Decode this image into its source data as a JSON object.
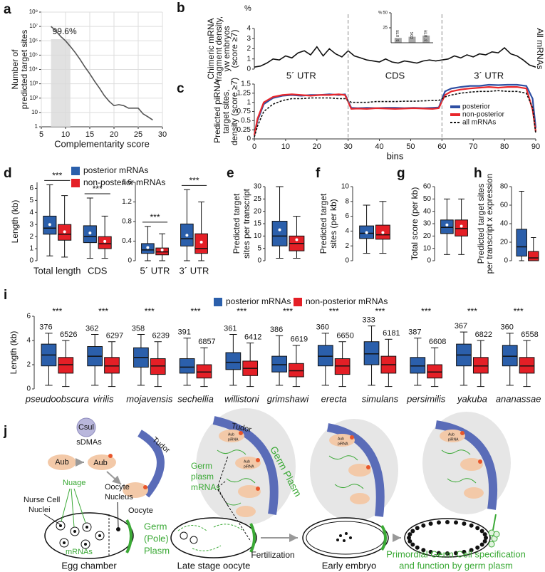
{
  "chart_data": [
    {
      "panel": "a",
      "type": "line",
      "ylabel": [
        "Number of",
        "predicted target sites"
      ],
      "xlabel": "Complementarity score",
      "annotation": "99.6%",
      "highlight_x": [
        7,
        11
      ],
      "x": [
        7,
        8,
        9,
        10,
        11,
        12,
        13,
        14,
        15,
        16,
        17,
        18,
        19,
        20,
        21,
        22,
        23,
        24,
        25,
        26,
        27,
        28
      ],
      "values": [
        10000000,
        5000000,
        2000000,
        1000000,
        400000,
        150000,
        50000,
        15000,
        5000,
        1500,
        500,
        150,
        60,
        30,
        35,
        30,
        20,
        20,
        20,
        8,
        5,
        3
      ],
      "color": "#555555",
      "xlim": [
        5,
        30
      ],
      "xticks": [
        5,
        10,
        15,
        20,
        25,
        30
      ],
      "ylog": true,
      "ylim": [
        1,
        100000000
      ],
      "yticks": [
        1,
        10,
        {
          "value": 100,
          "label": "10²"
        },
        {
          "value": 1000,
          "label": "10³"
        },
        {
          "value": 10000,
          "label": "10⁴"
        },
        {
          "value": 100000,
          "label": "10⁵"
        },
        {
          "value": 1000000,
          "label": "10⁶"
        },
        {
          "value": 10000000,
          "label": "10⁷"
        },
        {
          "value": 100000000,
          "label": "10⁸"
        }
      ],
      "grid": true
    },
    {
      "panel": "b",
      "type": "line",
      "unit": "%",
      "ylabel": [
        "Chimeric mRNA",
        "fragment density,",
        "yw embryos",
        "(score ≥7)"
      ],
      "side_label": "All mRNAs",
      "regions": [
        "5´ UTR",
        "CDS",
        "3´ UTR"
      ],
      "x": [
        0,
        2,
        4,
        6,
        8,
        10,
        12,
        14,
        16,
        18,
        20,
        22,
        24,
        26,
        28,
        30,
        32,
        34,
        36,
        38,
        40,
        42,
        44,
        46,
        48,
        50,
        52,
        54,
        56,
        58,
        60,
        62,
        64,
        66,
        68,
        70,
        72,
        74,
        76,
        78,
        80,
        82,
        84,
        86,
        88,
        90
      ],
      "values": [
        0.2,
        0.3,
        0.6,
        1.0,
        0.9,
        1.3,
        1.1,
        1.6,
        1.8,
        1.4,
        2.2,
        1.3,
        2.0,
        1.5,
        1.2,
        1.8,
        1.3,
        1.1,
        0.9,
        0.8,
        0.7,
        1.0,
        0.7,
        0.6,
        0.8,
        0.7,
        0.6,
        0.8,
        0.9,
        0.8,
        0.9,
        1.0,
        1.3,
        1.1,
        1.4,
        1.2,
        1.5,
        1.4,
        1.7,
        1.6,
        2.1,
        1.5,
        1.3,
        0.9,
        0.4,
        0.2
      ],
      "color": "#111111",
      "xlim": [
        0,
        90
      ],
      "ylim": [
        0,
        4
      ],
      "yticks": [
        0,
        1,
        2,
        3,
        4
      ]
    },
    {
      "type": "bar",
      "unit": "%",
      "categories": [
        "5´ UTR",
        "CDS",
        "3´ UTR"
      ],
      "values": [
        8,
        10,
        12
      ],
      "color": "#a6a6a6",
      "ylim": [
        0,
        50
      ],
      "yticks": [
        25,
        50
      ]
    },
    {
      "panel": "c",
      "type": "line",
      "ylabel": [
        "Predicted piRNA",
        "target sites,",
        "density (score ≥7)"
      ],
      "xlabel": "bins",
      "x": [
        0,
        1,
        3,
        6,
        9,
        12,
        15,
        18,
        21,
        24,
        27,
        29,
        31,
        33,
        36,
        39,
        42,
        45,
        48,
        51,
        54,
        57,
        59,
        61,
        63,
        66,
        69,
        72,
        75,
        78,
        81,
        84,
        87,
        89,
        90
      ],
      "series": [
        {
          "name": "posterior",
          "color": "#2e4fa3",
          "values": [
            0.1,
            0.5,
            0.95,
            1.12,
            1.18,
            1.2,
            1.18,
            1.2,
            1.2,
            1.22,
            1.2,
            1.22,
            0.85,
            0.84,
            0.85,
            0.84,
            0.85,
            0.85,
            0.84,
            0.85,
            0.84,
            0.85,
            0.86,
            1.3,
            1.38,
            1.42,
            1.45,
            1.45,
            1.48,
            1.47,
            1.48,
            1.48,
            1.45,
            1.1,
            0.3
          ]
        },
        {
          "name": "non-posterior",
          "color": "#e8262b",
          "values": [
            0.1,
            0.55,
            1.0,
            1.15,
            1.2,
            1.22,
            1.2,
            1.18,
            1.2,
            1.2,
            1.22,
            1.2,
            0.82,
            0.83,
            0.82,
            0.84,
            0.83,
            0.82,
            0.83,
            0.84,
            0.83,
            0.82,
            0.84,
            1.2,
            1.3,
            1.35,
            1.38,
            1.4,
            1.42,
            1.4,
            1.42,
            1.42,
            1.38,
            0.8,
            0.2
          ]
        },
        {
          "name": "all mRNAs",
          "color": "#111111",
          "dash": true,
          "values": [
            0.05,
            0.35,
            0.75,
            0.95,
            1.05,
            1.1,
            1.1,
            1.12,
            1.12,
            1.12,
            1.1,
            1.1,
            1.0,
            1.0,
            1.0,
            1.02,
            1.02,
            1.02,
            1.03,
            1.03,
            1.04,
            1.05,
            1.05,
            1.15,
            1.2,
            1.25,
            1.28,
            1.3,
            1.3,
            1.32,
            1.3,
            1.3,
            1.25,
            0.85,
            0.15
          ]
        }
      ],
      "xlim": [
        0,
        90
      ],
      "xticks": [
        0,
        10,
        20,
        30,
        40,
        50,
        60,
        70,
        80,
        90
      ],
      "ylim": [
        0,
        1.5
      ],
      "yticks": [
        0,
        0.25,
        0.5,
        0.75,
        1,
        1.25,
        1.5
      ],
      "dividers": [
        30,
        60
      ],
      "legend": "right"
    },
    {
      "panel": "d",
      "type": "box",
      "ylabel": [
        "Length (kb)"
      ],
      "categories": [
        "Total length",
        "CDS"
      ],
      "significance": [
        "***",
        "***"
      ],
      "legend": "top",
      "series": [
        {
          "name": "posterior mRNAs",
          "color": "#2b5fab",
          "boxes": [
            {
              "whislo": 0.4,
              "q1": 2.2,
              "med": 2.7,
              "q3": 3.7,
              "whishi": 6.3,
              "mean": 3.0
            },
            {
              "whislo": 0.2,
              "q1": 1.5,
              "med": 2.0,
              "q3": 2.9,
              "whishi": 5.2,
              "mean": 2.3
            }
          ]
        },
        {
          "name": "non-posterior mRNAs",
          "color": "#e41f26",
          "boxes": [
            {
              "whislo": 0.3,
              "q1": 1.7,
              "med": 2.2,
              "q3": 3.0,
              "whishi": 5.4,
              "mean": 2.4
            },
            {
              "whislo": 0.2,
              "q1": 1.0,
              "med": 1.4,
              "q3": 2.0,
              "whishi": 3.7,
              "mean": 1.6
            }
          ]
        }
      ],
      "ylim": [
        0,
        6.5
      ],
      "yticks": [
        0,
        1,
        2,
        3,
        4,
        5,
        6
      ]
    },
    {
      "type": "box",
      "categories": [
        "5´ UTR",
        "3´ UTR"
      ],
      "significance": [
        "***",
        "***"
      ],
      "series": [
        {
          "color": "#2b5fab",
          "boxes": [
            {
              "whislo": 0,
              "q1": 0.15,
              "med": 0.22,
              "q3": 0.35,
              "whishi": 0.7,
              "mean": 0.27
            },
            {
              "whislo": 0,
              "q1": 0.3,
              "med": 0.45,
              "q3": 0.75,
              "whishi": 1.45,
              "mean": 0.52
            }
          ]
        },
        {
          "color": "#e41f26",
          "boxes": [
            {
              "whislo": 0,
              "q1": 0.12,
              "med": 0.18,
              "q3": 0.26,
              "whishi": 0.55,
              "mean": 0.22
            },
            {
              "whislo": 0,
              "q1": 0.15,
              "med": 0.25,
              "q3": 0.55,
              "whishi": 1.2,
              "mean": 0.38
            }
          ]
        }
      ],
      "ylim": [
        0,
        1.6
      ],
      "yticks": [
        0,
        0.4,
        0.8,
        1.2,
        1.6
      ]
    },
    {
      "panel": "e",
      "type": "box",
      "ylabel": [
        "Predicted target",
        "sites per transcript"
      ],
      "categories": [
        null
      ],
      "series": [
        {
          "color": "#2b5fab",
          "boxes": [
            {
              "whislo": 1,
              "q1": 6,
              "med": 10,
              "q3": 16,
              "whishi": 30,
              "mean": 12.5
            }
          ]
        },
        {
          "color": "#e41f26",
          "boxes": [
            {
              "whislo": 1,
              "q1": 4,
              "med": 7,
              "q3": 10,
              "whishi": 18,
              "mean": 8.5
            }
          ]
        }
      ],
      "ylim": [
        0,
        30
      ],
      "yticks": [
        0,
        5,
        10,
        15,
        20,
        25,
        30
      ]
    },
    {
      "panel": "f",
      "type": "box",
      "ylabel": [
        "Predicted target",
        "sites (per kb)"
      ],
      "categories": [
        null
      ],
      "series": [
        {
          "color": "#2b5fab",
          "boxes": [
            {
              "whislo": 1,
              "q1": 3,
              "med": 3.7,
              "q3": 4.7,
              "whishi": 7.5,
              "mean": 3.8
            }
          ]
        },
        {
          "color": "#e41f26",
          "boxes": [
            {
              "whislo": 1,
              "q1": 2.9,
              "med": 3.5,
              "q3": 4.8,
              "whishi": 8,
              "mean": 3.8
            }
          ]
        }
      ],
      "ylim": [
        0,
        10
      ],
      "yticks": [
        0,
        2,
        4,
        6,
        8,
        10
      ]
    },
    {
      "panel": "g",
      "type": "box",
      "ylabel": [
        "Total score (per kb)"
      ],
      "categories": [
        null
      ],
      "series": [
        {
          "color": "#2b5fab",
          "boxes": [
            {
              "whislo": 5,
              "q1": 22,
              "med": 27,
              "q3": 33,
              "whishi": 50,
              "mean": 29
            }
          ]
        },
        {
          "color": "#e41f26",
          "boxes": [
            {
              "whislo": 5,
              "q1": 20,
              "med": 26,
              "q3": 33,
              "whishi": 50,
              "mean": 28
            }
          ]
        }
      ],
      "ylim": [
        0,
        60
      ],
      "yticks": [
        0,
        10,
        20,
        30,
        40,
        50,
        60
      ]
    },
    {
      "panel": "h",
      "type": "box",
      "ylabel": [
        "Predicted target sites",
        "per transcript x expression"
      ],
      "categories": [
        null
      ],
      "series": [
        {
          "color": "#2b5fab",
          "boxes": [
            {
              "whislo": 0,
              "q1": 5,
              "med": 15,
              "q3": 34,
              "whishi": 75
            }
          ]
        },
        {
          "color": "#e41f26",
          "boxes": [
            {
              "whislo": 0,
              "q1": 0,
              "med": 3,
              "q3": 10,
              "whishi": 25
            }
          ]
        }
      ],
      "ylim": [
        0,
        80
      ],
      "yticks": [
        0,
        20,
        40,
        60,
        80
      ]
    },
    {
      "panel": "i",
      "type": "box",
      "ylabel": [
        "Length (kb)"
      ],
      "italic": true,
      "legend": "top",
      "categories": [
        "pseudoobscura",
        "virilis",
        "mojavensis",
        "sechellia",
        "willistoni",
        "grimshawi",
        "erecta",
        "simulans",
        "persimilis",
        "yakuba",
        "ananassae"
      ],
      "significance": [
        "***",
        "***",
        "***",
        "***",
        "***",
        "***",
        "***",
        "***",
        "***",
        "***",
        "***"
      ],
      "series": [
        {
          "name": "posterior mRNAs",
          "color": "#2b5fab",
          "n": [
            376,
            362,
            358,
            391,
            361,
            386,
            360,
            333,
            387,
            367,
            360
          ],
          "boxes": [
            {
              "whislo": 0.3,
              "q1": 1.9,
              "med": 2.8,
              "q3": 3.7,
              "whishi": 4.6
            },
            {
              "whislo": 0.3,
              "q1": 1.9,
              "med": 2.7,
              "q3": 3.5,
              "whishi": 4.5
            },
            {
              "whislo": 0.3,
              "q1": 1.8,
              "med": 2.6,
              "q3": 3.4,
              "whishi": 4.5
            },
            {
              "whislo": 0.3,
              "q1": 1.3,
              "med": 1.8,
              "q3": 2.5,
              "whishi": 4.2
            },
            {
              "whislo": 0.3,
              "q1": 1.6,
              "med": 2.2,
              "q3": 3.0,
              "whishi": 4.5
            },
            {
              "whislo": 0.3,
              "q1": 1.4,
              "med": 2.0,
              "q3": 2.7,
              "whishi": 4.4
            },
            {
              "whislo": 0.3,
              "q1": 1.9,
              "med": 2.7,
              "q3": 3.6,
              "whishi": 4.6
            },
            {
              "whislo": 0.3,
              "q1": 2.0,
              "med": 2.9,
              "q3": 3.9,
              "whishi": 5.2
            },
            {
              "whislo": 0.3,
              "q1": 1.3,
              "med": 1.9,
              "q3": 2.6,
              "whishi": 4.2
            },
            {
              "whislo": 0.3,
              "q1": 1.9,
              "med": 2.8,
              "q3": 3.7,
              "whishi": 4.7
            },
            {
              "whislo": 0.3,
              "q1": 1.9,
              "med": 2.7,
              "q3": 3.6,
              "whishi": 4.6
            }
          ]
        },
        {
          "name": "non-posterior mRNAs",
          "color": "#e41f26",
          "n": [
            6526,
            6297,
            6239,
            6857,
            6412,
            6619,
            6650,
            6181,
            6608,
            6822,
            6558
          ],
          "boxes": [
            {
              "whislo": 0.2,
              "q1": 1.3,
              "med": 2.0,
              "q3": 2.6,
              "whishi": 4.0
            },
            {
              "whislo": 0.2,
              "q1": 1.3,
              "med": 1.9,
              "q3": 2.6,
              "whishi": 3.9
            },
            {
              "whislo": 0.2,
              "q1": 1.2,
              "med": 1.9,
              "q3": 2.5,
              "whishi": 3.9
            },
            {
              "whislo": 0.2,
              "q1": 0.9,
              "med": 1.4,
              "q3": 2.0,
              "whishi": 3.4
            },
            {
              "whislo": 0.2,
              "q1": 1.1,
              "med": 1.7,
              "q3": 2.3,
              "whishi": 3.8
            },
            {
              "whislo": 0.2,
              "q1": 1.0,
              "med": 1.5,
              "q3": 2.1,
              "whishi": 3.6
            },
            {
              "whislo": 0.2,
              "q1": 1.2,
              "med": 1.9,
              "q3": 2.5,
              "whishi": 3.9
            },
            {
              "whislo": 0.2,
              "q1": 1.3,
              "med": 2.0,
              "q3": 2.7,
              "whishi": 4.1
            },
            {
              "whislo": 0.2,
              "q1": 0.9,
              "med": 1.4,
              "q3": 2.0,
              "whishi": 3.4
            },
            {
              "whislo": 0.2,
              "q1": 1.3,
              "med": 1.9,
              "q3": 2.6,
              "whishi": 4.0
            },
            {
              "whislo": 0.2,
              "q1": 1.3,
              "med": 1.9,
              "q3": 2.6,
              "whishi": 4.0
            }
          ]
        }
      ],
      "ylim": [
        0,
        6
      ],
      "yticks": [
        0,
        2,
        4,
        6
      ]
    }
  ],
  "diagram": {
    "panel": "j",
    "csul": "Csul",
    "sdmas": "sDMAs",
    "aub": "Aub",
    "tudor": "Tudor",
    "germ_plasm": "Germ Plasm",
    "small_aub": "Aub",
    "small_pirna": "piRNA",
    "germ_plasm_mrnas": [
      "Germ",
      "plasm",
      "mRNAs"
    ],
    "nuage": "Nuage",
    "oocyte_nucleus": [
      "Oocyte",
      "Nucleus"
    ],
    "nurse_cell_nuclei": [
      "Nurse Cell",
      "Nuclei"
    ],
    "oocyte": "Oocyte",
    "mrnas": "mRNAs",
    "pole_plasm": [
      "Germ",
      "(Pole)",
      "Plasm"
    ],
    "stages": [
      "Egg chamber",
      "Late stage oocyte",
      "Early embryo"
    ],
    "fertilization": "Fertilization",
    "pgc": [
      "Primordial Germ Cell specification",
      "and function by germ plasm"
    ]
  }
}
